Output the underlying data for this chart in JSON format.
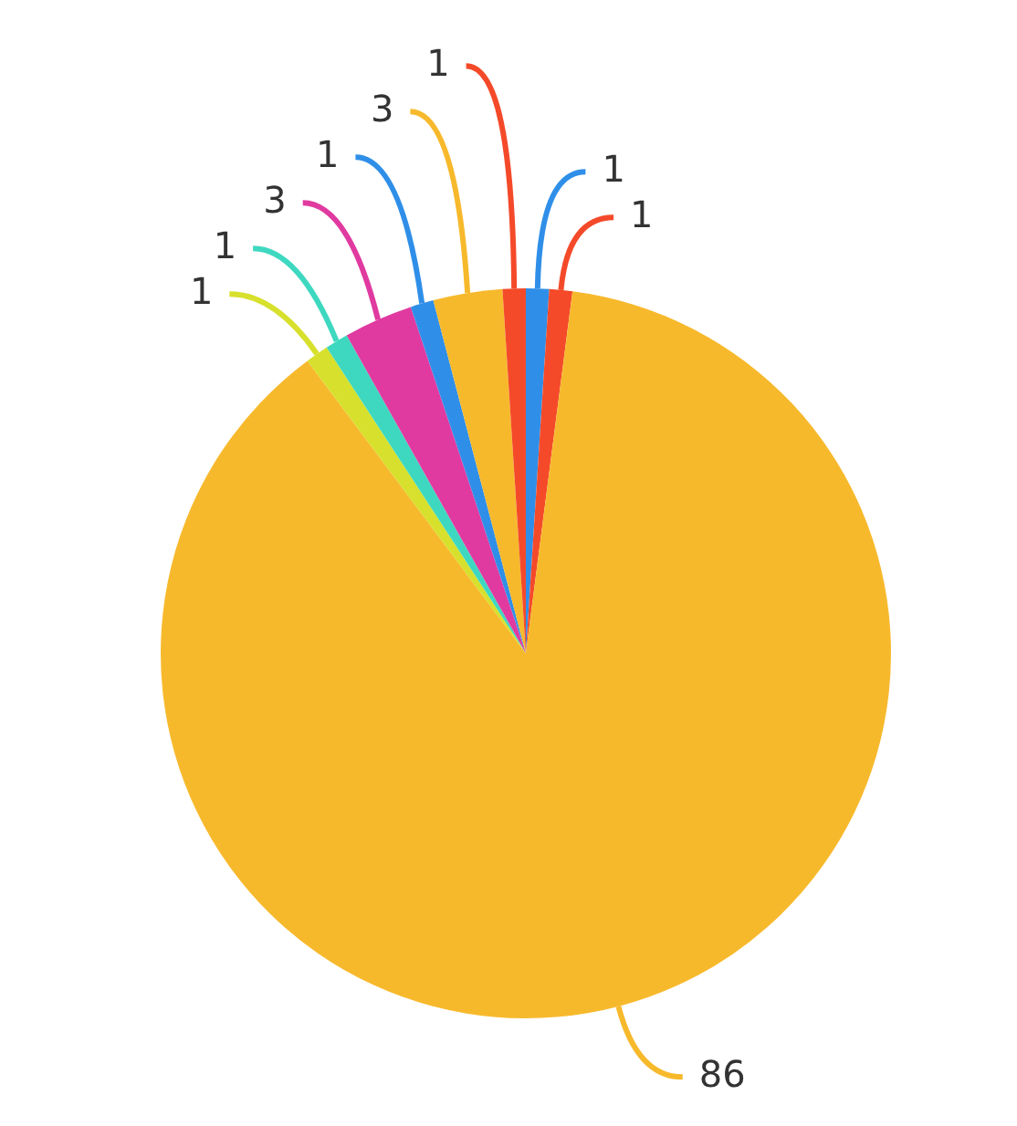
{
  "chart_data": {
    "type": "pie",
    "categories": [
      null,
      null,
      null,
      null,
      null,
      null,
      null,
      null,
      null
    ],
    "values": [
      1,
      1,
      86,
      1,
      1,
      3,
      1,
      3,
      1
    ],
    "colors": [
      "#2f8fe8",
      "#f44a2a",
      "#f7b92c",
      "#d7e02c",
      "#3ed8c0",
      "#e03aa0",
      "#2f8fe8",
      "#f7b92c",
      "#f44a2a"
    ],
    "data_labels": true,
    "legend": false
  }
}
